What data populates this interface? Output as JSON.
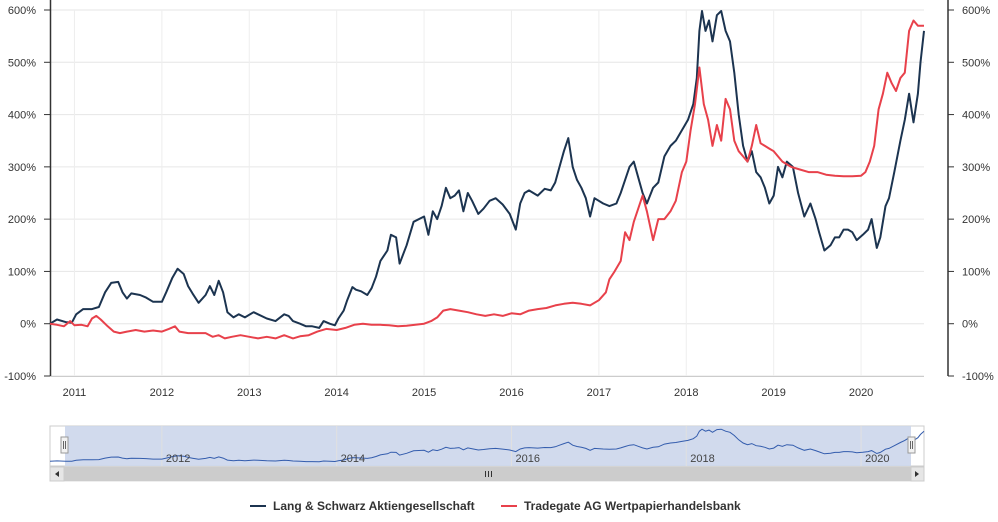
{
  "chart_data": {
    "type": "line",
    "title": "",
    "xlabel": "",
    "ylabel": "",
    "x_range": [
      2010.72,
      2020.72
    ],
    "ylim": [
      -100,
      600
    ],
    "y_ticks": [
      -100,
      0,
      100,
      200,
      300,
      400,
      500,
      600
    ],
    "y_tick_labels": [
      "-100%",
      "0%",
      "100%",
      "200%",
      "300%",
      "400%",
      "500%",
      "600%"
    ],
    "x_ticks": [
      2011,
      2012,
      2013,
      2014,
      2015,
      2016,
      2017,
      2018,
      2019,
      2020
    ],
    "x_tick_labels": [
      "2011",
      "2012",
      "2013",
      "2014",
      "2015",
      "2016",
      "2017",
      "2018",
      "2019",
      "2020"
    ],
    "navigator_labels": [
      "2012",
      "2014",
      "2016",
      "2018",
      "2020"
    ],
    "legend_position": "bottom-center",
    "grid": true,
    "series": [
      {
        "name": "Lang & Schwarz Aktiengesellschaft",
        "color": "#1c3450",
        "points": [
          [
            2010.72,
            0
          ],
          [
            2010.8,
            8
          ],
          [
            2010.9,
            3
          ],
          [
            2010.97,
            2
          ],
          [
            2011.02,
            18
          ],
          [
            2011.1,
            28
          ],
          [
            2011.2,
            28
          ],
          [
            2011.28,
            32
          ],
          [
            2011.35,
            60
          ],
          [
            2011.42,
            78
          ],
          [
            2011.5,
            80
          ],
          [
            2011.55,
            60
          ],
          [
            2011.6,
            48
          ],
          [
            2011.65,
            58
          ],
          [
            2011.75,
            55
          ],
          [
            2011.82,
            50
          ],
          [
            2011.9,
            42
          ],
          [
            2012.0,
            42
          ],
          [
            2012.05,
            60
          ],
          [
            2012.12,
            88
          ],
          [
            2012.18,
            105
          ],
          [
            2012.25,
            95
          ],
          [
            2012.3,
            72
          ],
          [
            2012.35,
            58
          ],
          [
            2012.42,
            40
          ],
          [
            2012.5,
            55
          ],
          [
            2012.55,
            72
          ],
          [
            2012.6,
            55
          ],
          [
            2012.65,
            82
          ],
          [
            2012.7,
            60
          ],
          [
            2012.75,
            22
          ],
          [
            2012.82,
            12
          ],
          [
            2012.88,
            18
          ],
          [
            2012.95,
            12
          ],
          [
            2013.05,
            22
          ],
          [
            2013.1,
            18
          ],
          [
            2013.2,
            10
          ],
          [
            2013.3,
            5
          ],
          [
            2013.4,
            18
          ],
          [
            2013.45,
            15
          ],
          [
            2013.5,
            5
          ],
          [
            2013.58,
            0
          ],
          [
            2013.65,
            -5
          ],
          [
            2013.72,
            -5
          ],
          [
            2013.8,
            -8
          ],
          [
            2013.85,
            5
          ],
          [
            2013.92,
            0
          ],
          [
            2013.98,
            -3
          ],
          [
            2014.02,
            10
          ],
          [
            2014.08,
            25
          ],
          [
            2014.12,
            45
          ],
          [
            2014.18,
            70
          ],
          [
            2014.22,
            65
          ],
          [
            2014.28,
            62
          ],
          [
            2014.35,
            55
          ],
          [
            2014.4,
            68
          ],
          [
            2014.45,
            90
          ],
          [
            2014.5,
            120
          ],
          [
            2014.58,
            140
          ],
          [
            2014.62,
            170
          ],
          [
            2014.68,
            165
          ],
          [
            2014.72,
            115
          ],
          [
            2014.8,
            150
          ],
          [
            2014.88,
            195
          ],
          [
            2015.0,
            205
          ],
          [
            2015.05,
            170
          ],
          [
            2015.1,
            215
          ],
          [
            2015.15,
            200
          ],
          [
            2015.2,
            225
          ],
          [
            2015.25,
            260
          ],
          [
            2015.3,
            240
          ],
          [
            2015.35,
            245
          ],
          [
            2015.4,
            255
          ],
          [
            2015.45,
            215
          ],
          [
            2015.5,
            250
          ],
          [
            2015.55,
            235
          ],
          [
            2015.62,
            210
          ],
          [
            2015.68,
            220
          ],
          [
            2015.75,
            235
          ],
          [
            2015.82,
            240
          ],
          [
            2015.9,
            228
          ],
          [
            2015.98,
            210
          ],
          [
            2016.05,
            180
          ],
          [
            2016.1,
            230
          ],
          [
            2016.15,
            250
          ],
          [
            2016.2,
            255
          ],
          [
            2016.3,
            245
          ],
          [
            2016.38,
            258
          ],
          [
            2016.45,
            255
          ],
          [
            2016.5,
            270
          ],
          [
            2016.55,
            300
          ],
          [
            2016.6,
            330
          ],
          [
            2016.65,
            355
          ],
          [
            2016.7,
            300
          ],
          [
            2016.75,
            275
          ],
          [
            2016.8,
            260
          ],
          [
            2016.85,
            240
          ],
          [
            2016.9,
            205
          ],
          [
            2016.95,
            240
          ],
          [
            2017.05,
            230
          ],
          [
            2017.12,
            225
          ],
          [
            2017.2,
            230
          ],
          [
            2017.25,
            250
          ],
          [
            2017.3,
            275
          ],
          [
            2017.35,
            300
          ],
          [
            2017.4,
            310
          ],
          [
            2017.45,
            280
          ],
          [
            2017.5,
            250
          ],
          [
            2017.55,
            230
          ],
          [
            2017.62,
            260
          ],
          [
            2017.68,
            270
          ],
          [
            2017.75,
            320
          ],
          [
            2017.82,
            340
          ],
          [
            2017.88,
            350
          ],
          [
            2017.95,
            370
          ],
          [
            2018.02,
            390
          ],
          [
            2018.08,
            420
          ],
          [
            2018.12,
            470
          ],
          [
            2018.15,
            560
          ],
          [
            2018.18,
            598
          ],
          [
            2018.22,
            560
          ],
          [
            2018.26,
            580
          ],
          [
            2018.3,
            540
          ],
          [
            2018.35,
            590
          ],
          [
            2018.4,
            598
          ],
          [
            2018.45,
            560
          ],
          [
            2018.5,
            540
          ],
          [
            2018.55,
            480
          ],
          [
            2018.6,
            400
          ],
          [
            2018.65,
            340
          ],
          [
            2018.7,
            310
          ],
          [
            2018.75,
            330
          ],
          [
            2018.8,
            290
          ],
          [
            2018.85,
            280
          ],
          [
            2018.9,
            260
          ],
          [
            2018.95,
            230
          ],
          [
            2019.0,
            245
          ],
          [
            2019.05,
            300
          ],
          [
            2019.1,
            280
          ],
          [
            2019.15,
            310
          ],
          [
            2019.22,
            300
          ],
          [
            2019.28,
            250
          ],
          [
            2019.35,
            205
          ],
          [
            2019.42,
            230
          ],
          [
            2019.48,
            200
          ],
          [
            2019.52,
            175
          ],
          [
            2019.58,
            140
          ],
          [
            2019.65,
            150
          ],
          [
            2019.7,
            165
          ],
          [
            2019.75,
            165
          ],
          [
            2019.8,
            180
          ],
          [
            2019.85,
            180
          ],
          [
            2019.9,
            175
          ],
          [
            2019.95,
            160
          ],
          [
            2020.02,
            170
          ],
          [
            2020.08,
            180
          ],
          [
            2020.12,
            200
          ],
          [
            2020.18,
            145
          ],
          [
            2020.22,
            165
          ],
          [
            2020.28,
            225
          ],
          [
            2020.32,
            240
          ],
          [
            2020.38,
            290
          ],
          [
            2020.45,
            350
          ],
          [
            2020.5,
            390
          ],
          [
            2020.55,
            440
          ],
          [
            2020.6,
            385
          ],
          [
            2020.65,
            440
          ],
          [
            2020.68,
            500
          ],
          [
            2020.72,
            560
          ]
        ]
      },
      {
        "name": "Tradegate AG Wertpapierhandelsbank",
        "color": "#e8414b",
        "points": [
          [
            2010.72,
            0
          ],
          [
            2010.8,
            -2
          ],
          [
            2010.88,
            -5
          ],
          [
            2010.95,
            5
          ],
          [
            2011.0,
            -3
          ],
          [
            2011.08,
            -2
          ],
          [
            2011.15,
            -5
          ],
          [
            2011.2,
            10
          ],
          [
            2011.25,
            15
          ],
          [
            2011.3,
            8
          ],
          [
            2011.38,
            -5
          ],
          [
            2011.45,
            -15
          ],
          [
            2011.52,
            -18
          ],
          [
            2011.6,
            -15
          ],
          [
            2011.7,
            -12
          ],
          [
            2011.8,
            -15
          ],
          [
            2011.9,
            -13
          ],
          [
            2012.0,
            -15
          ],
          [
            2012.08,
            -10
          ],
          [
            2012.15,
            -5
          ],
          [
            2012.2,
            -15
          ],
          [
            2012.3,
            -18
          ],
          [
            2012.4,
            -18
          ],
          [
            2012.5,
            -18
          ],
          [
            2012.58,
            -25
          ],
          [
            2012.65,
            -22
          ],
          [
            2012.72,
            -28
          ],
          [
            2012.8,
            -25
          ],
          [
            2012.9,
            -22
          ],
          [
            2013.0,
            -25
          ],
          [
            2013.1,
            -28
          ],
          [
            2013.2,
            -25
          ],
          [
            2013.3,
            -28
          ],
          [
            2013.4,
            -22
          ],
          [
            2013.5,
            -28
          ],
          [
            2013.58,
            -24
          ],
          [
            2013.68,
            -22
          ],
          [
            2013.78,
            -15
          ],
          [
            2013.88,
            -10
          ],
          [
            2014.0,
            -12
          ],
          [
            2014.1,
            -8
          ],
          [
            2014.2,
            -2
          ],
          [
            2014.3,
            0
          ],
          [
            2014.4,
            -2
          ],
          [
            2014.5,
            -2
          ],
          [
            2014.6,
            -3
          ],
          [
            2014.7,
            -5
          ],
          [
            2014.8,
            -4
          ],
          [
            2014.9,
            -2
          ],
          [
            2015.0,
            0
          ],
          [
            2015.08,
            5
          ],
          [
            2015.15,
            12
          ],
          [
            2015.22,
            25
          ],
          [
            2015.3,
            28
          ],
          [
            2015.4,
            25
          ],
          [
            2015.5,
            22
          ],
          [
            2015.6,
            18
          ],
          [
            2015.7,
            15
          ],
          [
            2015.8,
            18
          ],
          [
            2015.9,
            15
          ],
          [
            2016.0,
            20
          ],
          [
            2016.1,
            18
          ],
          [
            2016.2,
            25
          ],
          [
            2016.3,
            28
          ],
          [
            2016.4,
            30
          ],
          [
            2016.5,
            35
          ],
          [
            2016.6,
            38
          ],
          [
            2016.7,
            40
          ],
          [
            2016.8,
            38
          ],
          [
            2016.9,
            35
          ],
          [
            2017.0,
            45
          ],
          [
            2017.08,
            60
          ],
          [
            2017.12,
            85
          ],
          [
            2017.18,
            100
          ],
          [
            2017.25,
            120
          ],
          [
            2017.3,
            175
          ],
          [
            2017.35,
            160
          ],
          [
            2017.4,
            195
          ],
          [
            2017.45,
            220
          ],
          [
            2017.5,
            245
          ],
          [
            2017.55,
            215
          ],
          [
            2017.62,
            160
          ],
          [
            2017.68,
            200
          ],
          [
            2017.75,
            200
          ],
          [
            2017.82,
            215
          ],
          [
            2017.88,
            235
          ],
          [
            2017.95,
            290
          ],
          [
            2018.0,
            310
          ],
          [
            2018.05,
            370
          ],
          [
            2018.1,
            420
          ],
          [
            2018.15,
            490
          ],
          [
            2018.2,
            420
          ],
          [
            2018.25,
            390
          ],
          [
            2018.3,
            340
          ],
          [
            2018.35,
            380
          ],
          [
            2018.4,
            350
          ],
          [
            2018.45,
            430
          ],
          [
            2018.5,
            410
          ],
          [
            2018.55,
            350
          ],
          [
            2018.6,
            330
          ],
          [
            2018.65,
            320
          ],
          [
            2018.7,
            310
          ],
          [
            2018.75,
            340
          ],
          [
            2018.8,
            380
          ],
          [
            2018.85,
            345
          ],
          [
            2018.9,
            340
          ],
          [
            2018.95,
            335
          ],
          [
            2019.0,
            330
          ],
          [
            2019.05,
            320
          ],
          [
            2019.1,
            310
          ],
          [
            2019.2,
            300
          ],
          [
            2019.3,
            295
          ],
          [
            2019.4,
            290
          ],
          [
            2019.5,
            290
          ],
          [
            2019.6,
            285
          ],
          [
            2019.7,
            283
          ],
          [
            2019.8,
            282
          ],
          [
            2019.9,
            282
          ],
          [
            2020.0,
            283
          ],
          [
            2020.05,
            290
          ],
          [
            2020.1,
            310
          ],
          [
            2020.15,
            340
          ],
          [
            2020.2,
            410
          ],
          [
            2020.25,
            440
          ],
          [
            2020.3,
            480
          ],
          [
            2020.35,
            460
          ],
          [
            2020.4,
            445
          ],
          [
            2020.45,
            470
          ],
          [
            2020.5,
            480
          ],
          [
            2020.55,
            560
          ],
          [
            2020.6,
            580
          ],
          [
            2020.65,
            570
          ],
          [
            2020.72,
            570
          ]
        ]
      }
    ]
  }
}
